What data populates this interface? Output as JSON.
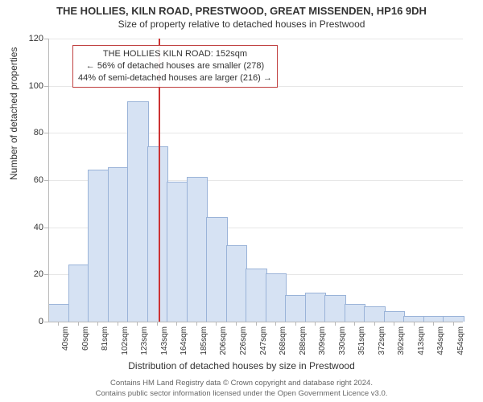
{
  "title": "THE HOLLIES, KILN ROAD, PRESTWOOD, GREAT MISSENDEN, HP16 9DH",
  "subtitle": "Size of property relative to detached houses in Prestwood",
  "y_axis": {
    "title": "Number of detached properties",
    "min": 0,
    "max": 120,
    "ticks": [
      0,
      20,
      40,
      60,
      80,
      100,
      120
    ],
    "title_fontsize": 12,
    "tick_fontsize": 11
  },
  "x_axis": {
    "title": "Distribution of detached houses by size in Prestwood",
    "labels": [
      "40sqm",
      "60sqm",
      "81sqm",
      "102sqm",
      "123sqm",
      "143sqm",
      "164sqm",
      "185sqm",
      "206sqm",
      "226sqm",
      "247sqm",
      "268sqm",
      "288sqm",
      "309sqm",
      "330sqm",
      "351sqm",
      "372sqm",
      "392sqm",
      "413sqm",
      "434sqm",
      "454sqm"
    ],
    "title_fontsize": 12,
    "tick_fontsize": 10
  },
  "bars": {
    "values": [
      7,
      24,
      64,
      65,
      93,
      74,
      59,
      61,
      44,
      32,
      22,
      20,
      11,
      12,
      11,
      7,
      6,
      4,
      2,
      2,
      2
    ],
    "fill_color": "#d6e2f3",
    "border_color": "#9ab3d8",
    "width_ratio": 1.0
  },
  "marker": {
    "x_value": 152,
    "x_min": 40,
    "x_max": 460,
    "color": "#cc3333"
  },
  "annotation": {
    "line1": "THE HOLLIES KILN ROAD: 152sqm",
    "line2": "← 56% of detached houses are smaller (278)",
    "line3": "44% of semi-detached houses are larger (216) →",
    "border_color": "#c04040",
    "fontsize": 11
  },
  "footer": {
    "line1": "Contains HM Land Registry data © Crown copyright and database right 2024.",
    "line2": "Contains public sector information licensed under the Open Government Licence v3.0."
  },
  "colors": {
    "background": "#ffffff",
    "grid": "#e7e7e7",
    "axis": "#b8b8b8",
    "text": "#333333",
    "footer_text": "#666666"
  }
}
